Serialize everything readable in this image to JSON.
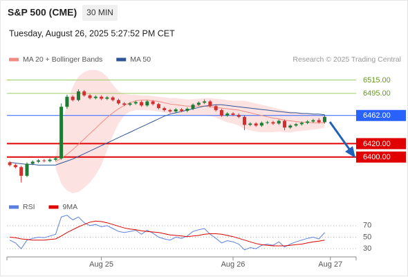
{
  "header": {
    "symbol": "S&P 500 (CME)",
    "timeframe": "30 MIN",
    "datetime": "Tuesday, August 26, 2025 5:27:52 PM CET",
    "copyright": "Research © 2025 Trading Central"
  },
  "chart_data": [
    {
      "type": "candlestick",
      "up_color": "#1e7b34",
      "down_color": "#d32f2f",
      "xlim": [
        -0.5,
        60.5
      ],
      "ylim": [
        6345,
        6531
      ],
      "open": [
        6392,
        6388,
        6385,
        6372,
        6390,
        6393,
        6395,
        6394,
        6396,
        6398,
        6475,
        6490,
        6485,
        6498,
        6492,
        6488,
        6490,
        6487,
        6489,
        6485,
        6480,
        6478,
        6480,
        6482,
        6477,
        6483,
        6479,
        6473,
        6470,
        6468,
        6471,
        6469,
        6472,
        6478,
        6481,
        6483,
        6476,
        6470,
        6462,
        6465,
        6463,
        6460,
        6448,
        6450,
        6447,
        6451,
        6452,
        6450,
        6454,
        6444,
        6447,
        6449,
        6451,
        6453,
        6455,
        6452
      ],
      "high": [
        6394,
        6390,
        6387,
        6392,
        6395,
        6397,
        6397,
        6398,
        6400,
        6480,
        6493,
        6492,
        6501,
        6500,
        6494,
        6492,
        6492,
        6491,
        6491,
        6487,
        6482,
        6482,
        6484,
        6484,
        6485,
        6485,
        6481,
        6475,
        6472,
        6473,
        6473,
        6474,
        6480,
        6483,
        6486,
        6485,
        6478,
        6472,
        6467,
        6467,
        6465,
        6462,
        6452,
        6452,
        6453,
        6454,
        6454,
        6456,
        6456,
        6449,
        6451,
        6453,
        6455,
        6457,
        6458,
        6463
      ],
      "low": [
        6386,
        6383,
        6362,
        6370,
        6388,
        6391,
        6392,
        6392,
        6394,
        6396,
        6472,
        6483,
        6483,
        6490,
        6486,
        6486,
        6485,
        6485,
        6483,
        6478,
        6476,
        6476,
        6478,
        6475,
        6475,
        6477,
        6471,
        6468,
        6466,
        6466,
        6467,
        6467,
        6470,
        6476,
        6479,
        6474,
        6468,
        6460,
        6460,
        6461,
        6458,
        6440,
        6446,
        6445,
        6445,
        6449,
        6448,
        6448,
        6440,
        6442,
        6445,
        6447,
        6449,
        6451,
        6450,
        6450
      ],
      "close": [
        6388,
        6385,
        6372,
        6390,
        6393,
        6395,
        6394,
        6396,
        6398,
        6475,
        6490,
        6485,
        6498,
        6492,
        6488,
        6490,
        6487,
        6489,
        6485,
        6480,
        6478,
        6480,
        6482,
        6477,
        6483,
        6479,
        6473,
        6470,
        6468,
        6471,
        6469,
        6472,
        6478,
        6481,
        6483,
        6476,
        6470,
        6462,
        6465,
        6463,
        6460,
        6448,
        6450,
        6447,
        6451,
        6452,
        6450,
        6454,
        6444,
        6447,
        6449,
        6451,
        6453,
        6455,
        6452,
        6460
      ],
      "series": [
        {
          "name": "MA 20 + Bollinger Bands",
          "color": "#f28b82",
          "band_color": "#fde2e2",
          "values": [
            null,
            null,
            null,
            null,
            null,
            null,
            null,
            null,
            6393,
            6398,
            6404,
            6411,
            6419,
            6427,
            6435,
            6443,
            6451,
            6459,
            6466,
            6472,
            6477,
            6481,
            6484,
            6485,
            6485,
            6484,
            6483,
            6481,
            6479,
            6478,
            6477,
            6476,
            6476,
            6476,
            6476,
            6475,
            6474,
            6473,
            6472,
            6471,
            6470,
            6468,
            6466,
            6464,
            6462,
            6460,
            6458,
            6457,
            6455,
            6454,
            6453,
            6452,
            6452,
            6451,
            6451,
            6451
          ],
          "upper": [
            null,
            null,
            null,
            null,
            null,
            null,
            null,
            null,
            6402,
            6440,
            6480,
            6505,
            6520,
            6527,
            6530,
            6530,
            6527,
            6520,
            6508,
            6498,
            6494,
            6493,
            6493,
            6492,
            6492,
            6491,
            6490,
            6489,
            6488,
            6488,
            6487,
            6486,
            6486,
            6487,
            6488,
            6488,
            6487,
            6486,
            6485,
            6484,
            6484,
            6484,
            6482,
            6480,
            6478,
            6476,
            6474,
            6472,
            6470,
            6468,
            6467,
            6466,
            6465,
            6464,
            6463,
            6462
          ],
          "lower": [
            null,
            null,
            null,
            null,
            null,
            null,
            null,
            null,
            6384,
            6360,
            6350,
            6346,
            6348,
            6354,
            6362,
            6373,
            6388,
            6410,
            6432,
            6450,
            6462,
            6468,
            6470,
            6470,
            6470,
            6469,
            6468,
            6466,
            6464,
            6463,
            6462,
            6462,
            6462,
            6462,
            6462,
            6461,
            6459,
            6455,
            6452,
            6450,
            6447,
            6442,
            6440,
            6438,
            6437,
            6437,
            6437,
            6438,
            6437,
            6437,
            6438,
            6439,
            6440,
            6441,
            6442,
            6444
          ]
        },
        {
          "name": "MA 50",
          "color": "#2f5597",
          "values": [
            6392,
            6391,
            6390,
            6389,
            6389,
            6388,
            6388,
            6388,
            6388,
            6391,
            6394,
            6397,
            6401,
            6405,
            6409,
            6413,
            6417,
            6421,
            6425,
            6429,
            6433,
            6437,
            6441,
            6445,
            6449,
            6453,
            6457,
            6461,
            6464,
            6466,
            6468,
            6470,
            6472,
            6474,
            6476,
            6477,
            6478,
            6478,
            6477,
            6476,
            6475,
            6474,
            6473,
            6472,
            6471,
            6470,
            6469,
            6468,
            6467,
            6466,
            6466,
            6465,
            6465,
            6464,
            6464,
            6463
          ]
        }
      ],
      "levels": [
        {
          "value": 6515,
          "label": "6515.00",
          "color": "#9ccc65",
          "boxed": false
        },
        {
          "value": 6495,
          "label": "6495.00",
          "color": "#9ccc65",
          "boxed": false
        },
        {
          "value": 6462,
          "label": "6462.00",
          "color": "#2962ff",
          "boxed": true
        },
        {
          "value": 6420,
          "label": "6420.00",
          "color": "#e00000",
          "boxed": true
        },
        {
          "value": 6400,
          "label": "6400.00",
          "color": "#e00000",
          "boxed": true
        }
      ]
    },
    {
      "type": "line",
      "xlim": [
        -0.5,
        60.5
      ],
      "ylim": [
        17,
        89
      ],
      "yticks": [
        30,
        50,
        70
      ],
      "xticks": [
        {
          "value": 16,
          "label": "Aug 25"
        },
        {
          "value": 39,
          "label": "Aug 26"
        },
        {
          "value": 56,
          "label": "Aug 27"
        }
      ],
      "series": [
        {
          "name": "RSI",
          "color": "#5b7fe0",
          "values": [
            45,
            40,
            30,
            45,
            48,
            50,
            49,
            52,
            55,
            85,
            88,
            80,
            85,
            75,
            70,
            72,
            68,
            70,
            65,
            60,
            58,
            60,
            62,
            55,
            62,
            57,
            50,
            47,
            45,
            50,
            48,
            52,
            60,
            63,
            65,
            55,
            48,
            40,
            44,
            42,
            38,
            28,
            32,
            30,
            36,
            38,
            36,
            42,
            33,
            38,
            42,
            45,
            48,
            50,
            47,
            58
          ]
        },
        {
          "name": "9MA",
          "color": "#e00000",
          "values": [
            50,
            49,
            47,
            46,
            45,
            45,
            45,
            46,
            47,
            52,
            58,
            63,
            68,
            72,
            76,
            78,
            77,
            75,
            72,
            69,
            66,
            64,
            63,
            61,
            60,
            59,
            58,
            56,
            54,
            53,
            52,
            51,
            52,
            53,
            55,
            56,
            56,
            55,
            53,
            51,
            48,
            45,
            42,
            39,
            37,
            36,
            35,
            35,
            35,
            36,
            37,
            38,
            40,
            42,
            43,
            45
          ]
        }
      ]
    }
  ]
}
